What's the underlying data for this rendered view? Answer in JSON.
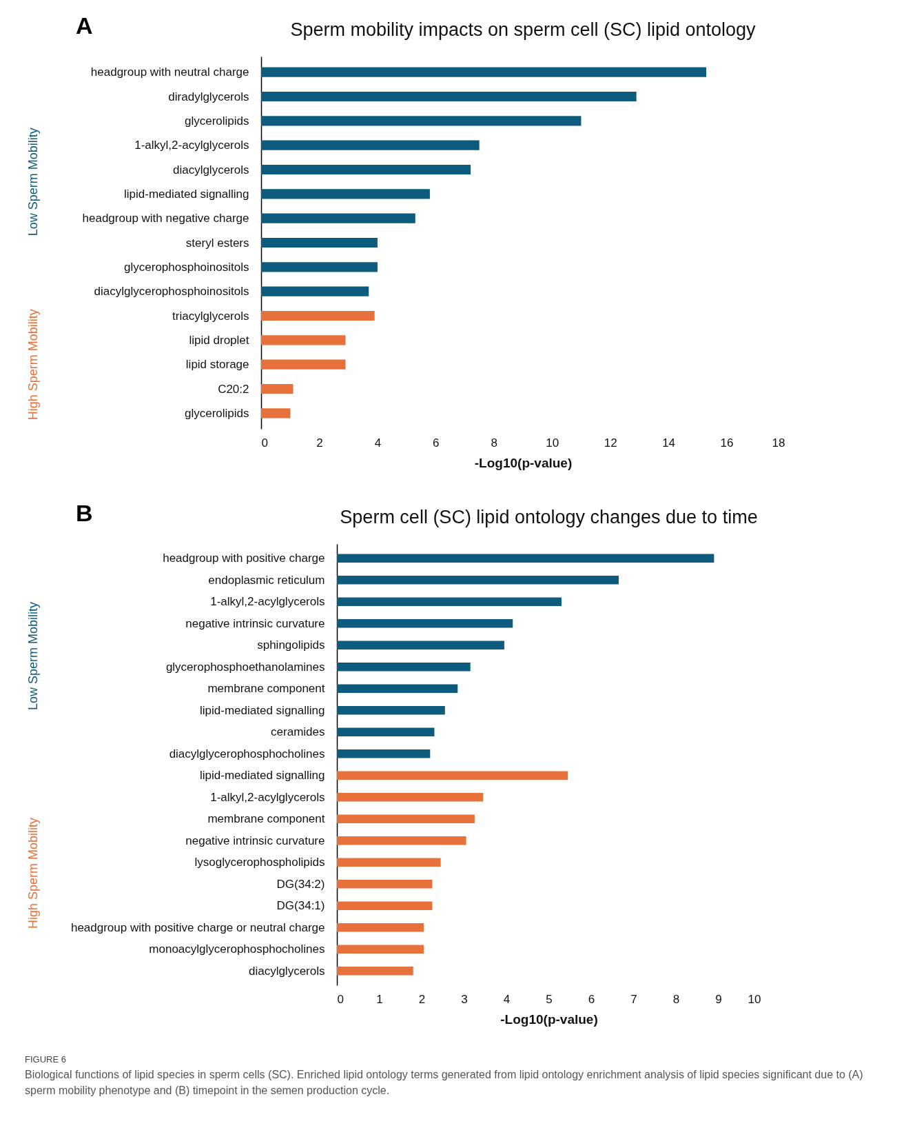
{
  "chart_data": [
    {
      "type": "bar",
      "orientation": "horizontal",
      "title": "Sperm mobility impacts on sperm cell (SC) lipid ontology",
      "xlabel": "-Log10(p-value)",
      "annotations": [
        "A"
      ],
      "categories": [
        "headgroup with neutral charge",
        "diradylglycerols",
        "glycerolipids",
        "1-alkyl,2-acylglycerols",
        "diacylglycerols",
        "lipid-mediated signalling",
        "headgroup with negative charge",
        "steryl esters",
        "glycerophosphoinositols",
        "diacylglycerophosphoinositols",
        "triacylglycerols",
        "lipid droplet",
        "lipid storage",
        "C20:2",
        "glycerolipids"
      ],
      "series": [
        {
          "name": "Low Sperm Mobility",
          "color": "#0d5c7d",
          "values": [
            15.3,
            12.9,
            11.0,
            7.5,
            7.2,
            5.8,
            5.3,
            4.0,
            4.0,
            3.7,
            null,
            null,
            null,
            null,
            null
          ]
        },
        {
          "name": "High Sperm Mobility",
          "color": "#e8703a",
          "values": [
            null,
            null,
            null,
            null,
            null,
            null,
            null,
            null,
            null,
            null,
            3.9,
            2.9,
            2.9,
            1.1,
            1.0
          ]
        }
      ],
      "xlim": [
        0,
        18
      ],
      "xticks": [
        0,
        2,
        4,
        6,
        8,
        10,
        12,
        14,
        16,
        18
      ],
      "grid": false,
      "legend": false
    },
    {
      "type": "bar",
      "orientation": "horizontal",
      "title": "Sperm cell (SC) lipid ontology changes due to time",
      "xlabel": "-Log10(p-value)",
      "annotations": [
        "B",
        "FIGURE 6",
        "Biological functions of lipid species in sperm cells (SC). Enriched lipid ontology terms generated from lipid ontology enrichment analysis of lipid species significant due to (A) sperm mobility phenotype and (B) timepoint in the semen production cycle."
      ],
      "categories": [
        "headgroup with positive charge",
        "endoplasmic reticulum",
        "1-alkyl,2-acylglycerols",
        "negative intrinsic curvature",
        "sphingolipids",
        "glycerophosphoethanolamines",
        "membrane component",
        "lipid-mediated signalling",
        "ceramides",
        "diacylglycerophosphocholines",
        "lipid-mediated signalling",
        "1-alkyl,2-acylglycerols",
        "membrane component",
        "negative intrinsic curvature",
        "lysoglycerophospholipids",
        "DG(34:2)",
        "DG(34:1)",
        "headgroup with positive charge or neutral charge",
        "monoacylglycerophosphocholines",
        "diacylglycerols"
      ],
      "series": [
        {
          "name": "Low Sperm Mobility",
          "color": "#0d5c7d",
          "values": [
            8.9,
            6.65,
            5.3,
            4.15,
            3.95,
            3.15,
            2.85,
            2.55,
            2.3,
            2.2,
            null,
            null,
            null,
            null,
            null,
            null,
            null,
            null,
            null,
            null
          ]
        },
        {
          "name": "High Sperm Mobility",
          "color": "#e8703a",
          "values": [
            null,
            null,
            null,
            null,
            null,
            null,
            null,
            null,
            null,
            null,
            5.45,
            3.45,
            3.25,
            3.05,
            2.45,
            2.25,
            2.25,
            2.05,
            2.05,
            1.8
          ]
        }
      ],
      "xlim": [
        0,
        10
      ],
      "xticks": [
        0,
        1,
        2,
        3,
        4,
        5,
        6,
        7,
        8,
        9,
        10
      ],
      "grid": false,
      "legend": false
    }
  ]
}
